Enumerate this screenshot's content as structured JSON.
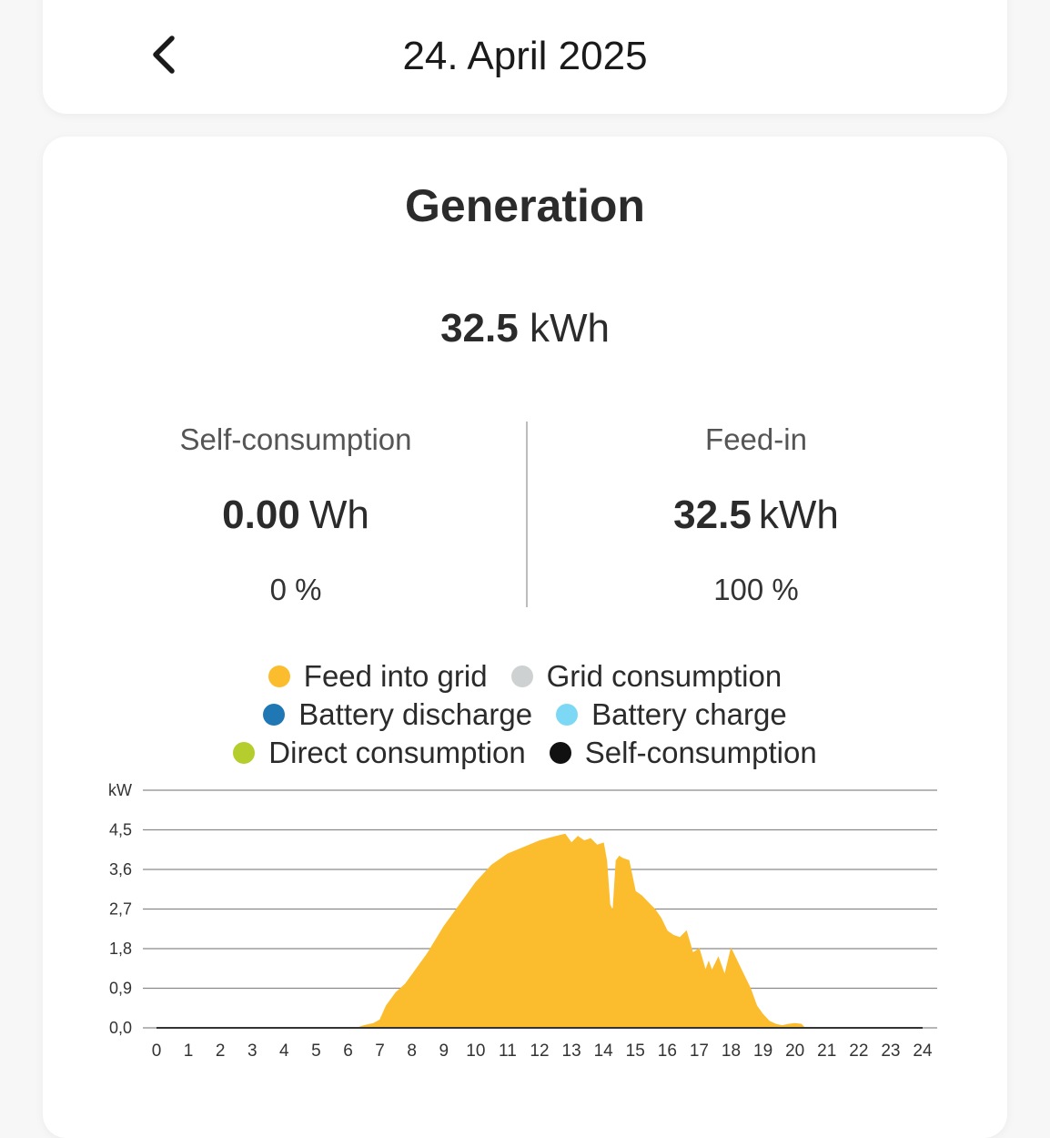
{
  "header": {
    "date": "24. April 2025",
    "back_icon": "chevron-left-icon"
  },
  "generation": {
    "title": "Generation",
    "total_value": "32.5",
    "total_unit": "kWh",
    "self_consumption": {
      "label": "Self-consumption",
      "value": "0.00",
      "unit": "Wh",
      "percent": "0 %"
    },
    "feed_in": {
      "label": "Feed-in",
      "value": "32.5",
      "unit": "kWh",
      "percent": "100 %"
    }
  },
  "legend": [
    {
      "label": "Feed into grid",
      "color": "#fbbd2e"
    },
    {
      "label": "Grid consumption",
      "color": "#cdd1d1"
    },
    {
      "label": "Battery discharge",
      "color": "#1f78b4"
    },
    {
      "label": "Battery charge",
      "color": "#7dd8f6"
    },
    {
      "label": "Direct consumption",
      "color": "#b5ce2d"
    },
    {
      "label": "Self-consumption",
      "color": "#111111"
    }
  ],
  "chart_data": {
    "type": "area",
    "ylabel": "kW",
    "yticks": [
      "0,0",
      "0,9",
      "1,8",
      "2,7",
      "3,6",
      "4,5"
    ],
    "ylim": [
      0,
      5.4
    ],
    "xlim": [
      0,
      24
    ],
    "xticks": [
      "0",
      "1",
      "2",
      "3",
      "4",
      "5",
      "6",
      "7",
      "8",
      "9",
      "10",
      "11",
      "12",
      "13",
      "14",
      "15",
      "16",
      "17",
      "18",
      "19",
      "20",
      "21",
      "22",
      "23",
      "24"
    ],
    "grid": true,
    "series": [
      {
        "name": "Feed into grid",
        "color": "#fbbd2e",
        "x": [
          6.3,
          6.5,
          6.8,
          7.0,
          7.2,
          7.5,
          7.8,
          8.0,
          8.5,
          9.0,
          9.5,
          10.0,
          10.5,
          11.0,
          11.5,
          12.0,
          12.5,
          12.8,
          13.0,
          13.2,
          13.4,
          13.6,
          13.8,
          14.0,
          14.1,
          14.2,
          14.3,
          14.4,
          14.5,
          14.6,
          14.8,
          15.0,
          15.2,
          15.4,
          15.6,
          15.8,
          16.0,
          16.2,
          16.4,
          16.6,
          16.8,
          17.0,
          17.2,
          17.3,
          17.4,
          17.6,
          17.8,
          18.0,
          18.2,
          18.4,
          18.6,
          18.8,
          19.0,
          19.2,
          19.4,
          19.6,
          19.8,
          20.0,
          20.2,
          20.3
        ],
        "y": [
          0.0,
          0.05,
          0.1,
          0.18,
          0.5,
          0.8,
          1.0,
          1.2,
          1.7,
          2.3,
          2.8,
          3.3,
          3.7,
          3.95,
          4.1,
          4.25,
          4.35,
          4.4,
          4.2,
          4.35,
          4.25,
          4.3,
          4.15,
          4.2,
          3.8,
          2.8,
          2.65,
          3.8,
          3.9,
          3.85,
          3.8,
          3.1,
          3.0,
          2.85,
          2.7,
          2.5,
          2.2,
          2.1,
          2.05,
          2.2,
          1.7,
          1.8,
          1.3,
          1.5,
          1.3,
          1.6,
          1.2,
          1.8,
          1.5,
          1.2,
          0.9,
          0.5,
          0.3,
          0.15,
          0.08,
          0.05,
          0.08,
          0.1,
          0.08,
          0.0
        ]
      }
    ]
  }
}
